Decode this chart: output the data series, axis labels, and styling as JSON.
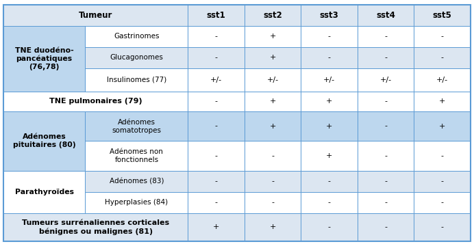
{
  "figsize": [
    6.92,
    3.57
  ],
  "dpi": 100,
  "col_headers": [
    "Tumeur",
    "sst1",
    "sst2",
    "sst3",
    "sst4",
    "sst5"
  ],
  "header_bg": "#dce6f1",
  "border_color": "#5b9bd5",
  "bg_light": "#dce6f1",
  "bg_white": "#ffffff",
  "bg_medium": "#b8cce4",
  "rows": [
    {
      "group": "TNE duodéno-\npancéatiques\n(76,78)",
      "group_bold": true,
      "group_span": 3,
      "group_bg": "#bdd7ee",
      "sub": "Gastrinomes",
      "sub_bg": "#ffffff",
      "values": [
        "-",
        "+",
        "-",
        "-",
        "-"
      ],
      "val_bg": "#ffffff",
      "full_row": false
    },
    {
      "group": "",
      "group_bold": false,
      "group_span": 0,
      "group_bg": "#bdd7ee",
      "sub": "Glucagonomes",
      "sub_bg": "#dce6f1",
      "values": [
        "-",
        "+",
        "-",
        "-",
        "-"
      ],
      "val_bg": "#dce6f1",
      "full_row": false
    },
    {
      "group": "",
      "group_bold": false,
      "group_span": 0,
      "group_bg": "#bdd7ee",
      "sub": "Insulinomes (77)",
      "sub_bg": "#ffffff",
      "values": [
        "+/-",
        "+/-",
        "+/-",
        "+/-",
        "+/-"
      ],
      "val_bg": "#ffffff",
      "full_row": false
    },
    {
      "group": "TNE pulmonaires (79)",
      "group_bold": true,
      "group_span": 1,
      "group_bg": "#ffffff",
      "sub": null,
      "sub_bg": "#ffffff",
      "values": [
        "-",
        "+",
        "+",
        "-",
        "+"
      ],
      "val_bg": "#ffffff",
      "full_row": true
    },
    {
      "group": "Adénomes\npituitaires (80)",
      "group_bold": true,
      "group_span": 2,
      "group_bg": "#bdd7ee",
      "sub": "Adénomes\nsomatotropes",
      "sub_bg": "#bdd7ee",
      "values": [
        "-",
        "+",
        "+",
        "-",
        "+"
      ],
      "val_bg": "#bdd7ee",
      "full_row": false
    },
    {
      "group": "",
      "group_bold": false,
      "group_span": 0,
      "group_bg": "#bdd7ee",
      "sub": "Adénomes non\nfonctionnels",
      "sub_bg": "#ffffff",
      "values": [
        "-",
        "-",
        "+",
        "-",
        "-"
      ],
      "val_bg": "#ffffff",
      "full_row": false
    },
    {
      "group": "Parathyroïdes",
      "group_bold": true,
      "group_span": 2,
      "group_bg": "#ffffff",
      "sub": "Adénomes (83)",
      "sub_bg": "#dce6f1",
      "values": [
        "-",
        "-",
        "-",
        "-",
        "-"
      ],
      "val_bg": "#dce6f1",
      "full_row": false
    },
    {
      "group": "",
      "group_bold": false,
      "group_span": 0,
      "group_bg": "#ffffff",
      "sub": "Hyperplasies (84)",
      "sub_bg": "#ffffff",
      "values": [
        "-",
        "-",
        "-",
        "-",
        "-"
      ],
      "val_bg": "#ffffff",
      "full_row": false
    },
    {
      "group": "Tumeurs surrénaliennes corticales\nbénignes ou malignes (81)",
      "group_bold": true,
      "group_span": 1,
      "group_bg": "#dce6f1",
      "sub": null,
      "sub_bg": "#dce6f1",
      "values": [
        "+",
        "+",
        "-",
        "-",
        "-"
      ],
      "val_bg": "#dce6f1",
      "full_row": true
    }
  ]
}
